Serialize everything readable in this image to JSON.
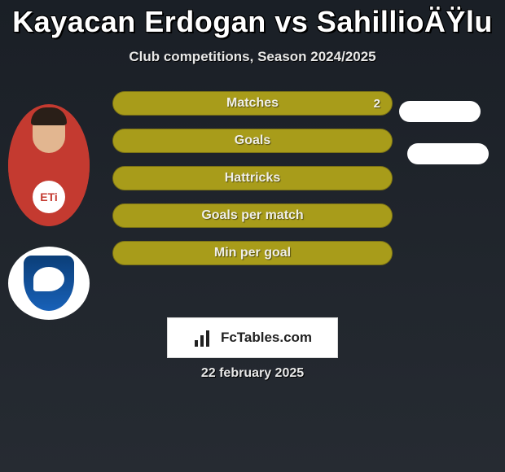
{
  "header": {
    "title": "Kayacan Erdogan vs SahillioÄŸlu",
    "subtitle": "Club competitions, Season 2024/2025"
  },
  "player1": {
    "name": "Kayacan Erdogan",
    "jersey_color": "#c43a30",
    "sponsor_text": "ETi",
    "club_crest_colors": [
      "#0b3e78",
      "#1861b8"
    ]
  },
  "player2": {
    "name": "SahillioÄŸlu"
  },
  "stats": {
    "bar_color": "#a89c1a",
    "bar_border": "#7a7116",
    "rows": [
      {
        "label": "Matches",
        "p1": "2",
        "p2": "",
        "p2_pill": true
      },
      {
        "label": "Goals",
        "p1": "",
        "p2": "",
        "p2_pill": true
      },
      {
        "label": "Hattricks",
        "p1": "",
        "p2": "",
        "p2_pill": false
      },
      {
        "label": "Goals per match",
        "p1": "",
        "p2": "",
        "p2_pill": false
      },
      {
        "label": "Min per goal",
        "p1": "",
        "p2": "",
        "p2_pill": false
      }
    ]
  },
  "footer": {
    "brand": "FcTables.com",
    "date": "22 february 2025"
  },
  "colors": {
    "background_top": "#1a1f26",
    "background_bottom": "#262b32",
    "text": "#ffffff"
  }
}
